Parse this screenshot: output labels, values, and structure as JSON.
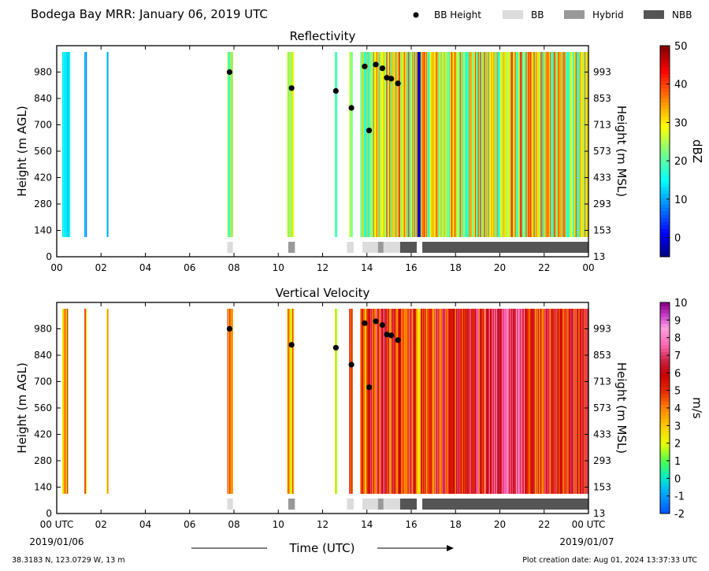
{
  "header": {
    "title": "Bodega Bay MRR:  January 06, 2019 UTC",
    "legend": [
      {
        "label": "BB Height",
        "kind": "dot",
        "color": "#000000"
      },
      {
        "label": "BB",
        "kind": "box",
        "color": "#dcdcdc"
      },
      {
        "label": "Hybrid",
        "kind": "box",
        "color": "#999999"
      },
      {
        "label": "NBB",
        "kind": "box",
        "color": "#555555"
      }
    ]
  },
  "footer": {
    "coords": "38.3183 N, 123.0729 W, 13 m",
    "creation": "Plot creation date: Aug 01, 2024 13:37:33 UTC",
    "xlabel": "Time (UTC)",
    "date_start": "2019/01/06",
    "date_end": "2019/01/07"
  },
  "chart_data": [
    {
      "type": "heatmap",
      "title": "Reflectivity",
      "ylabel": "Height (m AGL)",
      "ylabel_right": "Height (m MSL)",
      "x_ticks": [
        "00",
        "02",
        "04",
        "06",
        "08",
        "10",
        "12",
        "14",
        "16",
        "18",
        "20",
        "22",
        "00"
      ],
      "y_ticks": [
        "0",
        "140",
        "280",
        "420",
        "560",
        "700",
        "840",
        "980"
      ],
      "y_ticks_right": [
        "13",
        "153",
        "293",
        "433",
        "573",
        "713",
        "853",
        "993"
      ],
      "xlim_hours": [
        0,
        24
      ],
      "ylim_m": [
        0,
        1120
      ],
      "colorbar": {
        "label": "dBZ",
        "range": [
          -5,
          50
        ],
        "ticks": [
          "0",
          "10",
          "20",
          "30",
          "40",
          "50"
        ],
        "tick_values": [
          0,
          10,
          20,
          30,
          40,
          50
        ],
        "colormap": "jet"
      },
      "bb_height_points": [
        {
          "hour": 7.8,
          "height": 980
        },
        {
          "hour": 10.6,
          "height": 895
        },
        {
          "hour": 12.6,
          "height": 880
        },
        {
          "hour": 13.3,
          "height": 790
        },
        {
          "hour": 13.9,
          "height": 1010
        },
        {
          "hour": 14.1,
          "height": 670
        },
        {
          "hour": 14.4,
          "height": 1020
        },
        {
          "hour": 14.7,
          "height": 1000
        },
        {
          "hour": 14.9,
          "height": 950
        },
        {
          "hour": 15.1,
          "height": 945
        },
        {
          "hour": 15.4,
          "height": 920
        }
      ]
    },
    {
      "type": "heatmap",
      "title": "Vertical Velocity",
      "ylabel": "Height (m AGL)",
      "ylabel_right": "Height (m MSL)",
      "x_ticks": [
        "00 UTC",
        "02",
        "04",
        "06",
        "08",
        "10",
        "12",
        "14",
        "16",
        "18",
        "20",
        "22",
        "00 UTC"
      ],
      "y_ticks": [
        "0",
        "140",
        "280",
        "420",
        "560",
        "700",
        "840",
        "980"
      ],
      "y_ticks_right": [
        "13",
        "153",
        "293",
        "433",
        "573",
        "713",
        "853",
        "993"
      ],
      "xlim_hours": [
        0,
        24
      ],
      "ylim_m": [
        0,
        1120
      ],
      "colorbar": {
        "label": "m/s",
        "range": [
          -2,
          10
        ],
        "ticks": [
          "-2",
          "-1",
          "0",
          "1",
          "2",
          "3",
          "4",
          "5",
          "6",
          "7",
          "8",
          "9",
          "10"
        ],
        "tick_values": [
          -2,
          -1,
          0,
          1,
          2,
          3,
          4,
          5,
          6,
          7,
          8,
          9,
          10
        ],
        "colormap": "velocity"
      },
      "bb_height_points": [
        {
          "hour": 7.8,
          "height": 980
        },
        {
          "hour": 10.6,
          "height": 895
        },
        {
          "hour": 12.6,
          "height": 880
        },
        {
          "hour": 13.3,
          "height": 790
        },
        {
          "hour": 13.9,
          "height": 1010
        },
        {
          "hour": 14.1,
          "height": 670
        },
        {
          "hour": 14.4,
          "height": 1020
        },
        {
          "hour": 14.7,
          "height": 1000
        },
        {
          "hour": 14.9,
          "height": 950
        },
        {
          "hour": 15.1,
          "height": 945
        },
        {
          "hour": 15.4,
          "height": 920
        }
      ]
    }
  ],
  "bb_type_segments": [
    {
      "type": "BB",
      "start": 7.7,
      "end": 7.95
    },
    {
      "type": "Hybrid",
      "start": 10.45,
      "end": 10.75
    },
    {
      "type": "BB",
      "start": 13.1,
      "end": 13.4
    },
    {
      "type": "BB",
      "start": 13.8,
      "end": 14.5
    },
    {
      "type": "Hybrid",
      "start": 14.5,
      "end": 14.75
    },
    {
      "type": "BB",
      "start": 14.75,
      "end": 15.5
    },
    {
      "type": "NBB",
      "start": 15.5,
      "end": 16.25
    },
    {
      "type": "NBB",
      "start": 16.5,
      "end": 24.0
    }
  ]
}
